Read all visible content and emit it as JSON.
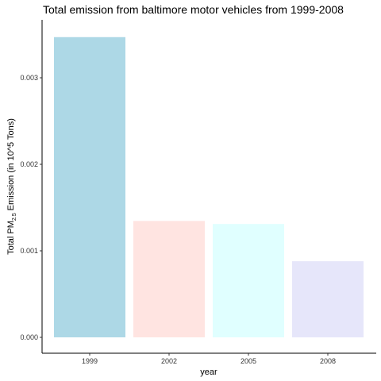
{
  "chart_data": {
    "type": "bar",
    "title": "Total emission from baltimore motor vehicles from 1999-2008",
    "xlabel": "year",
    "ylabel_prefix": "Total PM",
    "ylabel_subscript": "2.5",
    "ylabel_suffix": " Emission (in 10^5 Tons)",
    "categories": [
      "1999",
      "2002",
      "2005",
      "2008"
    ],
    "values": [
      0.00347,
      0.001345,
      0.00131,
      0.00088
    ],
    "bar_colors": [
      "#add8e6",
      "#ffe4e1",
      "#e0ffff",
      "#e6e6fa"
    ],
    "ylim": [
      0,
      0.0036
    ],
    "yticks": [
      0,
      0.001,
      0.002,
      0.003
    ],
    "ytick_labels": [
      "0.000",
      "0.001",
      "0.002",
      "0.003"
    ],
    "grid": false,
    "legend": "none"
  }
}
